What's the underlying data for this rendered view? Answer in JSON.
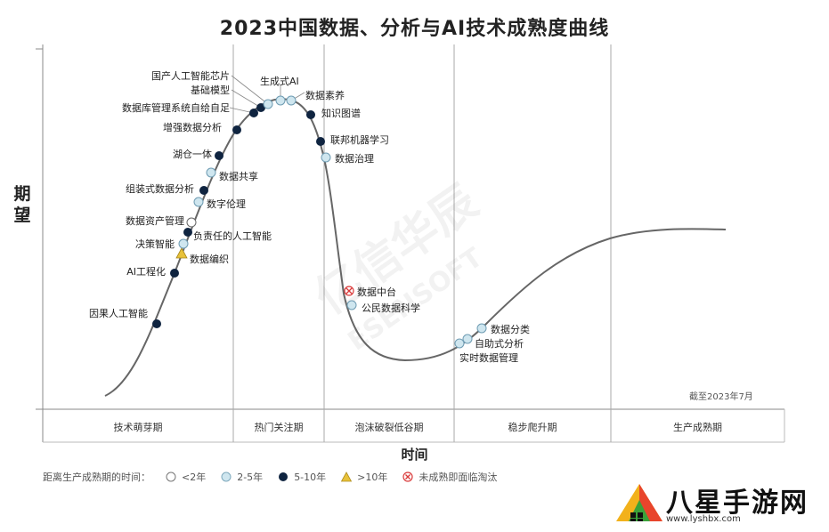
{
  "chart_data": {
    "type": "line",
    "title": "2023中国数据、分析与AI技术成熟度曲线",
    "xlabel": "时间",
    "ylabel": "期望",
    "cutoff_note": "截至2023年7月",
    "phases": [
      "技术萌芽期",
      "热门关注期",
      "泡沫破裂低谷期",
      "稳步爬升期",
      "生产成熟期"
    ],
    "legend_title": "距离生产成熟期的时间：",
    "legend": [
      {
        "symbol": "circle-white",
        "label": "<2年",
        "color": "#ffffff"
      },
      {
        "symbol": "circle-light",
        "label": "2-5年",
        "color": "#cfe6ef"
      },
      {
        "symbol": "circle-dark",
        "label": "5-10年",
        "color": "#0f2440"
      },
      {
        "symbol": "triangle",
        "label": ">10年",
        "color": "#e8c23a"
      },
      {
        "symbol": "cross",
        "label": "未成熟即面临淘汰",
        "color": "#d93a3a"
      }
    ],
    "technologies": [
      {
        "name": "因果人工智能",
        "phase": "技术萌芽期",
        "category": "5-10年"
      },
      {
        "name": "AI工程化",
        "phase": "技术萌芽期",
        "category": "5-10年"
      },
      {
        "name": "数据编织",
        "phase": "技术萌芽期",
        "category": ">10年"
      },
      {
        "name": "负责任的人工智能",
        "phase": "技术萌芽期",
        "category": "5-10年"
      },
      {
        "name": "决策智能",
        "phase": "技术萌芽期",
        "category": "2-5年"
      },
      {
        "name": "数据资产管理",
        "phase": "技术萌芽期",
        "category": "<2年"
      },
      {
        "name": "数字伦理",
        "phase": "技术萌芽期",
        "category": "2-5年"
      },
      {
        "name": "组装式数据分析",
        "phase": "技术萌芽期",
        "category": "5-10年"
      },
      {
        "name": "数据共享",
        "phase": "技术萌芽期",
        "category": "2-5年"
      },
      {
        "name": "湖仓一体",
        "phase": "技术萌芽期",
        "category": "5-10年"
      },
      {
        "name": "增强数据分析",
        "phase": "热门关注期",
        "category": "5-10年"
      },
      {
        "name": "数据库管理系统自给自足",
        "phase": "热门关注期",
        "category": "5-10年"
      },
      {
        "name": "基础模型",
        "phase": "热门关注期",
        "category": "5-10年"
      },
      {
        "name": "国产人工智能芯片",
        "phase": "热门关注期",
        "category": "2-5年"
      },
      {
        "name": "生成式AI",
        "phase": "热门关注期",
        "category": "2-5年"
      },
      {
        "name": "数据素养",
        "phase": "热门关注期",
        "category": "2-5年"
      },
      {
        "name": "知识图谱",
        "phase": "热门关注期",
        "category": "5-10年"
      },
      {
        "name": "联邦机器学习",
        "phase": "泡沫破裂低谷期",
        "category": "5-10年"
      },
      {
        "name": "数据治理",
        "phase": "泡沫破裂低谷期",
        "category": "2-5年"
      },
      {
        "name": "数据中台",
        "phase": "泡沫破裂低谷期",
        "category": "未成熟即面临淘汰"
      },
      {
        "name": "公民数据科学",
        "phase": "泡沫破裂低谷期",
        "category": "2-5年"
      },
      {
        "name": "实时数据管理",
        "phase": "稳步爬升期",
        "category": "2-5年"
      },
      {
        "name": "自助式分析",
        "phase": "稳步爬升期",
        "category": "2-5年"
      },
      {
        "name": "数据分类",
        "phase": "稳步爬升期",
        "category": "2-5年"
      }
    ]
  },
  "watermark": "亿信华辰 ESENSOFT",
  "brand": {
    "name": "八星手游网",
    "url": "www.lyshbx.com"
  }
}
